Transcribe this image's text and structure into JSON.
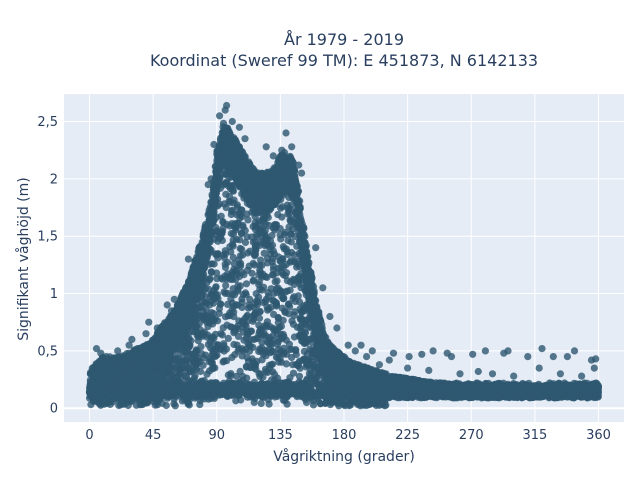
{
  "chart_data": {
    "type": "scatter",
    "title": [
      "År 1979 - 2019",
      "Koordinat (Sweref 99 TM): E 451873, N 6142133"
    ],
    "xlabel": "Vågriktning (grader)",
    "ylabel": "Signifikant våghöjd (m)",
    "xlim": [
      -18,
      378
    ],
    "ylim": [
      -0.12,
      2.74
    ],
    "xticks": [
      0,
      45,
      90,
      135,
      180,
      225,
      270,
      315,
      360
    ],
    "xtick_labels": [
      "0",
      "45",
      "90",
      "135",
      "180",
      "225",
      "270",
      "315",
      "360"
    ],
    "yticks": [
      0,
      0.5,
      1,
      1.5,
      2,
      2.5
    ],
    "ytick_labels": [
      "0",
      "0,5",
      "1",
      "1,5",
      "2",
      "2,5"
    ],
    "grid": true,
    "marker_color": "#2e5870",
    "plot_background": "#e5ecf6",
    "envelope": {
      "direction": [
        0,
        5,
        10,
        20,
        30,
        40,
        45,
        50,
        60,
        70,
        75,
        80,
        85,
        88,
        90,
        93,
        95,
        98,
        100,
        103,
        105,
        110,
        115,
        120,
        125,
        130,
        135,
        140,
        143,
        145,
        148,
        150,
        155,
        160,
        163,
        166,
        170,
        175,
        180,
        185,
        190,
        195,
        200,
        205,
        210,
        215,
        220,
        225,
        230,
        240,
        250,
        260,
        270,
        280,
        290,
        300,
        310,
        320,
        330,
        340,
        350,
        360
      ],
      "max_height": [
        0.3,
        0.4,
        0.45,
        0.45,
        0.5,
        0.55,
        0.6,
        0.7,
        0.85,
        1.1,
        1.3,
        1.5,
        1.75,
        2.0,
        2.25,
        2.4,
        2.5,
        2.45,
        2.4,
        2.35,
        2.3,
        2.2,
        2.1,
        2.05,
        2.05,
        2.1,
        2.2,
        2.25,
        2.2,
        2.1,
        1.9,
        1.7,
        1.3,
        0.95,
        0.8,
        0.65,
        0.55,
        0.5,
        0.45,
        0.4,
        0.38,
        0.36,
        0.34,
        0.32,
        0.3,
        0.28,
        0.27,
        0.26,
        0.25,
        0.23,
        0.22,
        0.21,
        0.2,
        0.2,
        0.2,
        0.2,
        0.2,
        0.2,
        0.2,
        0.2,
        0.2,
        0.21
      ]
    },
    "points": [
      [
        97,
        2.64
      ],
      [
        96,
        2.6
      ],
      [
        92,
        2.55
      ],
      [
        101,
        2.5
      ],
      [
        139,
        2.4
      ],
      [
        125,
        2.28
      ],
      [
        136,
        2.25
      ],
      [
        143,
        2.28
      ],
      [
        110,
        2.35
      ],
      [
        106,
        2.45
      ],
      [
        130,
        2.2
      ],
      [
        148,
        2.12
      ],
      [
        150,
        2.05
      ],
      [
        88,
        2.3
      ],
      [
        86,
        2.0
      ],
      [
        84,
        1.95
      ],
      [
        160,
        1.4
      ],
      [
        165,
        1.05
      ],
      [
        170,
        0.8
      ],
      [
        175,
        0.7
      ],
      [
        183,
        0.55
      ],
      [
        188,
        0.5
      ],
      [
        196,
        0.45
      ],
      [
        200,
        0.5
      ],
      [
        215,
        0.48
      ],
      [
        226,
        0.45
      ],
      [
        235,
        0.47
      ],
      [
        243,
        0.5
      ],
      [
        253,
        0.48
      ],
      [
        256,
        0.45
      ],
      [
        271,
        0.47
      ],
      [
        280,
        0.5
      ],
      [
        293,
        0.48
      ],
      [
        296,
        0.5
      ],
      [
        310,
        0.45
      ],
      [
        320,
        0.52
      ],
      [
        328,
        0.45
      ],
      [
        338,
        0.45
      ],
      [
        343,
        0.5
      ],
      [
        355,
        0.42
      ],
      [
        358,
        0.43
      ],
      [
        5,
        0.52
      ],
      [
        8,
        0.48
      ],
      [
        20,
        0.5
      ],
      [
        28,
        0.55
      ],
      [
        30,
        0.6
      ],
      [
        40,
        0.65
      ],
      [
        42,
        0.75
      ],
      [
        55,
        0.9
      ],
      [
        60,
        0.95
      ],
      [
        70,
        1.3
      ],
      [
        58,
        0.85
      ],
      [
        48,
        0.7
      ],
      [
        2,
        0.35
      ],
      [
        12,
        0.45
      ],
      [
        225,
        0.35
      ],
      [
        240,
        0.33
      ],
      [
        262,
        0.3
      ],
      [
        275,
        0.32
      ],
      [
        285,
        0.3
      ],
      [
        300,
        0.28
      ],
      [
        318,
        0.35
      ],
      [
        333,
        0.3
      ],
      [
        348,
        0.28
      ],
      [
        357,
        0.35
      ],
      [
        212,
        0.42
      ],
      [
        205,
        0.38
      ],
      [
        192,
        0.55
      ]
    ]
  }
}
